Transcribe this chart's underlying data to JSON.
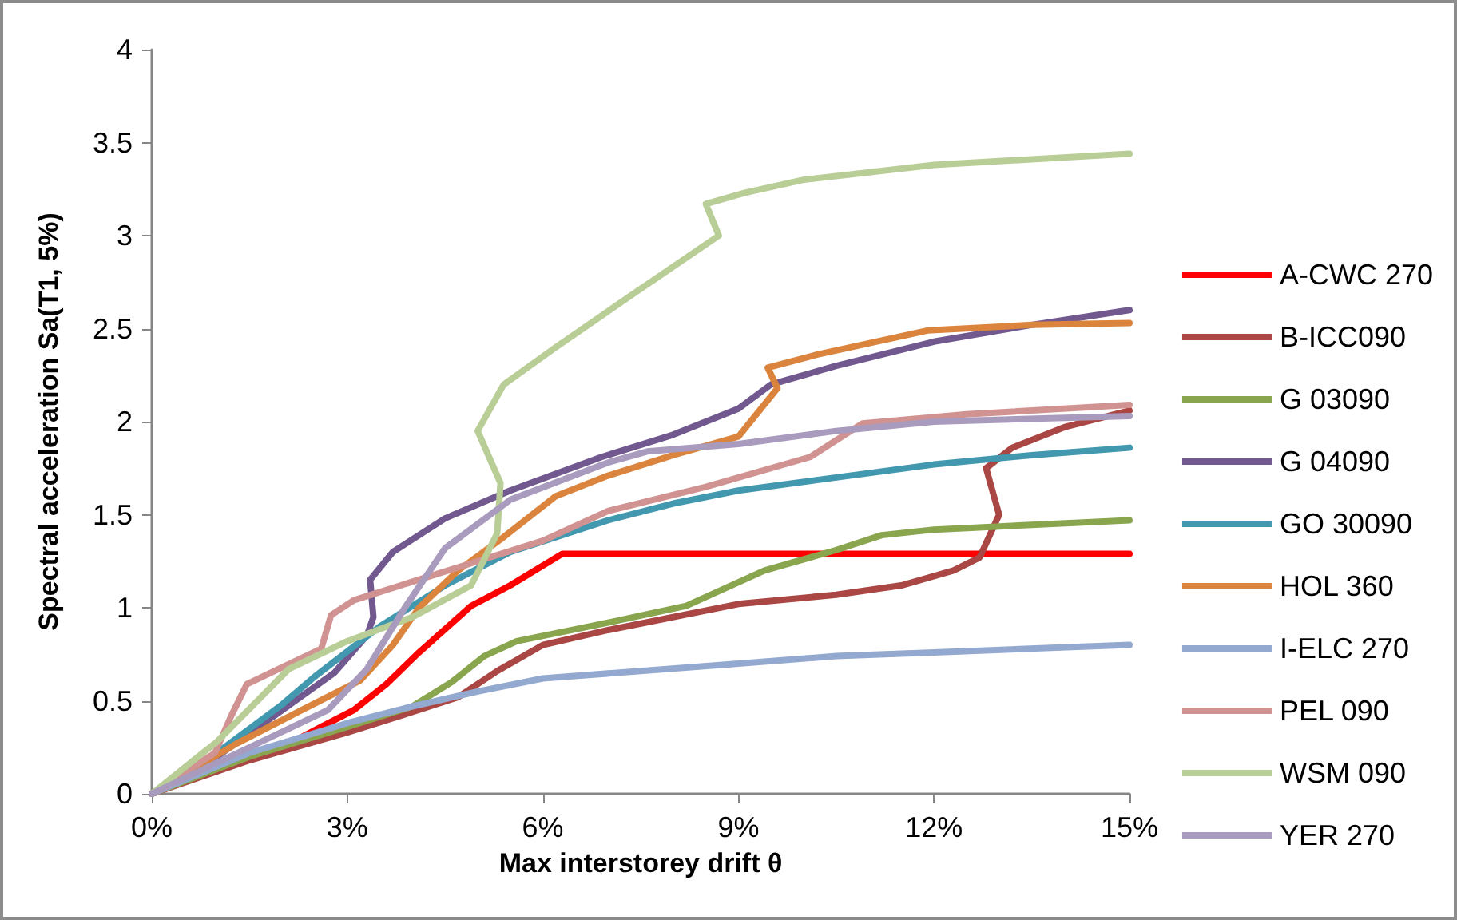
{
  "chart_data": {
    "type": "line",
    "xlabel": "Max interstorey drift θ",
    "ylabel": "Spectral acceleration Sa(T1, 5%)",
    "xlim": [
      0,
      15
    ],
    "xticks": [
      {
        "value": 0,
        "label": "0%"
      },
      {
        "value": 3,
        "label": "3%"
      },
      {
        "value": 6,
        "label": "6%"
      },
      {
        "value": 9,
        "label": "9%"
      },
      {
        "value": 12,
        "label": "12%"
      },
      {
        "value": 15,
        "label": "15%"
      }
    ],
    "ylim": [
      0,
      4
    ],
    "yticks": [
      0,
      0.5,
      1,
      1.5,
      2,
      2.5,
      3,
      3.5,
      4
    ],
    "grid": false,
    "legend": "right",
    "marker": "none",
    "line_style": "solid",
    "series": [
      {
        "name": "A-CWC 270",
        "color": "#ff0000",
        "x": [
          0,
          1,
          2,
          2.6,
          3.1,
          3.6,
          4.1,
          4.9,
          5.5,
          6.3,
          15
        ],
        "values": [
          0,
          0.13,
          0.25,
          0.36,
          0.45,
          0.59,
          0.76,
          1.01,
          1.12,
          1.29,
          1.29
        ]
      },
      {
        "name": "B-ICC090",
        "color": "#aa4643",
        "x": [
          0,
          1.5,
          3,
          4,
          4.7,
          5.3,
          6,
          7,
          9,
          10.5,
          11.5,
          12.3,
          12.7,
          13.0,
          12.8,
          13.2,
          14,
          15
        ],
        "values": [
          0,
          0.18,
          0.33,
          0.44,
          0.52,
          0.66,
          0.8,
          0.88,
          1.02,
          1.07,
          1.12,
          1.2,
          1.27,
          1.5,
          1.75,
          1.86,
          1.97,
          2.06
        ]
      },
      {
        "name": "G 03090",
        "color": "#89a54e",
        "x": [
          0,
          1.5,
          3,
          4,
          4.6,
          5.1,
          5.6,
          7,
          8.2,
          9.4,
          10.5,
          11.2,
          12,
          15
        ],
        "values": [
          0,
          0.2,
          0.36,
          0.47,
          0.6,
          0.74,
          0.82,
          0.92,
          1.01,
          1.2,
          1.31,
          1.39,
          1.42,
          1.47
        ]
      },
      {
        "name": "G 04090",
        "color": "#71588f",
        "x": [
          0,
          1,
          2,
          2.8,
          3.3,
          3.4,
          3.35,
          3.7,
          4.5,
          5.5,
          6.9,
          8,
          9,
          9.5,
          10.5,
          12,
          13.5,
          15
        ],
        "values": [
          0,
          0.2,
          0.45,
          0.65,
          0.85,
          0.95,
          1.15,
          1.3,
          1.48,
          1.63,
          1.81,
          1.93,
          2.07,
          2.2,
          2.3,
          2.43,
          2.52,
          2.6
        ]
      },
      {
        "name": "GO 30090",
        "color": "#4198af",
        "x": [
          0,
          1,
          2,
          2.5,
          3.5,
          4.5,
          5.5,
          7,
          8,
          9,
          10.5,
          12,
          13.5,
          15
        ],
        "values": [
          0,
          0.22,
          0.48,
          0.63,
          0.9,
          1.12,
          1.3,
          1.47,
          1.56,
          1.63,
          1.7,
          1.77,
          1.82,
          1.86
        ]
      },
      {
        "name": "HOL 360",
        "color": "#db843d",
        "x": [
          0,
          1.3,
          2.3,
          3.2,
          3.7,
          4.1,
          4.7,
          5.4,
          6.2,
          7,
          8,
          9,
          9.6,
          9.45,
          10.2,
          11.9,
          13.5,
          15
        ],
        "values": [
          0,
          0.27,
          0.45,
          0.61,
          0.8,
          1.0,
          1.2,
          1.38,
          1.6,
          1.71,
          1.82,
          1.92,
          2.18,
          2.29,
          2.36,
          2.49,
          2.52,
          2.53
        ]
      },
      {
        "name": "I-ELC 270",
        "color": "#93a9cf",
        "x": [
          0,
          1.5,
          3,
          4,
          5,
          6,
          7.5,
          9,
          10.5,
          12,
          15
        ],
        "values": [
          0,
          0.22,
          0.38,
          0.47,
          0.55,
          0.62,
          0.66,
          0.7,
          0.74,
          0.76,
          0.8
        ]
      },
      {
        "name": "PEL 090",
        "color": "#d19392",
        "x": [
          0,
          0.97,
          1.22,
          1.46,
          2.0,
          2.6,
          2.75,
          3.1,
          4,
          5,
          6,
          7,
          8.5,
          10.1,
          10.9,
          12.5,
          15
        ],
        "values": [
          0,
          0.22,
          0.42,
          0.59,
          0.68,
          0.78,
          0.96,
          1.04,
          1.14,
          1.25,
          1.36,
          1.52,
          1.65,
          1.81,
          1.99,
          2.04,
          2.09
        ]
      },
      {
        "name": "WSM 090",
        "color": "#b9cd96",
        "x": [
          0,
          1,
          2.1,
          3,
          4,
          4.9,
          5.3,
          5.35,
          5.0,
          5.4,
          6.2,
          7.4,
          8.7,
          8.5,
          9.1,
          10,
          12,
          15
        ],
        "values": [
          0,
          0.28,
          0.67,
          0.82,
          0.95,
          1.12,
          1.4,
          1.67,
          1.95,
          2.2,
          2.4,
          2.69,
          3.0,
          3.17,
          3.23,
          3.3,
          3.38,
          3.44
        ]
      },
      {
        "name": "YER 270",
        "color": "#a99bbd",
        "x": [
          0,
          1.5,
          2.7,
          3.3,
          3.9,
          4.5,
          5.5,
          7,
          7.6,
          9,
          10.5,
          12,
          15
        ],
        "values": [
          0,
          0.25,
          0.45,
          0.67,
          1.01,
          1.32,
          1.58,
          1.78,
          1.84,
          1.88,
          1.95,
          2.0,
          2.03
        ]
      }
    ]
  }
}
